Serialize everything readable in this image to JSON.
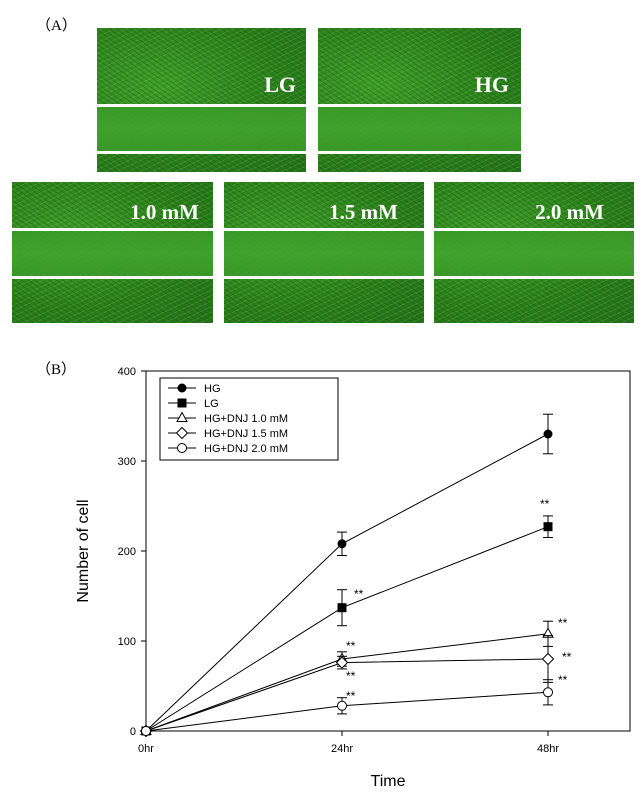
{
  "panel_a": {
    "label": "（A）",
    "images": [
      {
        "key": "lg",
        "label": "LG"
      },
      {
        "key": "hg",
        "label": "HG"
      },
      {
        "key": "d10",
        "label": "1.0 mM"
      },
      {
        "key": "d15",
        "label": "1.5 mM"
      },
      {
        "key": "d20",
        "label": "2.0 mM"
      }
    ]
  },
  "panel_b": {
    "label": "（B）"
  },
  "chart_data": {
    "type": "line",
    "categories": [
      "0hr",
      "24hr",
      "48hr"
    ],
    "xlabel": "Time",
    "ylabel": "Number of cell",
    "ylim": [
      0,
      400
    ],
    "yticks": [
      "0",
      "100",
      "200",
      "300",
      "400"
    ],
    "legend_position": "top-left",
    "significance_mark": "**",
    "series": [
      {
        "name": "HG",
        "marker": "filled-circle",
        "values": [
          0,
          208,
          330
        ],
        "errors": [
          0,
          13,
          22
        ],
        "sig": [
          false,
          false,
          false
        ]
      },
      {
        "name": "LG",
        "marker": "filled-square",
        "values": [
          0,
          137,
          227
        ],
        "errors": [
          0,
          20,
          12
        ],
        "sig": [
          false,
          true,
          true
        ]
      },
      {
        "name": "HG+DNJ 1.0 mM",
        "marker": "open-triangle",
        "values": [
          0,
          80,
          108
        ],
        "errors": [
          0,
          8,
          14
        ],
        "sig": [
          false,
          true,
          true
        ]
      },
      {
        "name": "HG+DNJ 1.5 mM",
        "marker": "open-diamond",
        "values": [
          0,
          76,
          80
        ],
        "errors": [
          0,
          7,
          26
        ],
        "sig": [
          false,
          true,
          true
        ]
      },
      {
        "name": "HG+DNJ 2.0 mM",
        "marker": "open-circle",
        "values": [
          0,
          28,
          43
        ],
        "errors": [
          0,
          9,
          14
        ],
        "sig": [
          false,
          true,
          true
        ]
      }
    ]
  }
}
